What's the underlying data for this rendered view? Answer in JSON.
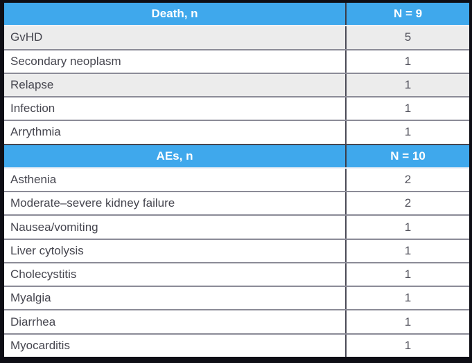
{
  "table": {
    "colors": {
      "header_bg": "#3fa8ec",
      "header_text": "#ffffff",
      "shaded_row_bg": "#ececec",
      "row_text": "#46464f",
      "outer_border": "#0e0e15"
    },
    "sections": [
      {
        "header": {
          "label": "Death, n",
          "value": "N = 9"
        },
        "rows": [
          {
            "label": "GvHD",
            "value": "5",
            "shaded": true
          },
          {
            "label": "Secondary neoplasm",
            "value": "1",
            "shaded": false
          },
          {
            "label": "Relapse",
            "value": "1",
            "shaded": true
          },
          {
            "label": "Infection",
            "value": "1",
            "shaded": false
          },
          {
            "label": "Arrythmia",
            "value": "1",
            "shaded": false
          }
        ]
      },
      {
        "header": {
          "label": "AEs, n",
          "value": "N = 10"
        },
        "rows": [
          {
            "label": "Asthenia",
            "value": "2",
            "shaded": false
          },
          {
            "label": "Moderate–severe kidney failure",
            "value": "2",
            "shaded": false
          },
          {
            "label": "Nausea/vomiting",
            "value": "1",
            "shaded": false
          },
          {
            "label": "Liver cytolysis",
            "value": "1",
            "shaded": false
          },
          {
            "label": "Cholecystitis",
            "value": "1",
            "shaded": false
          },
          {
            "label": "Myalgia",
            "value": "1",
            "shaded": false
          },
          {
            "label": "Diarrhea",
            "value": "1",
            "shaded": false
          },
          {
            "label": "Myocarditis",
            "value": "1",
            "shaded": false
          }
        ]
      }
    ]
  }
}
